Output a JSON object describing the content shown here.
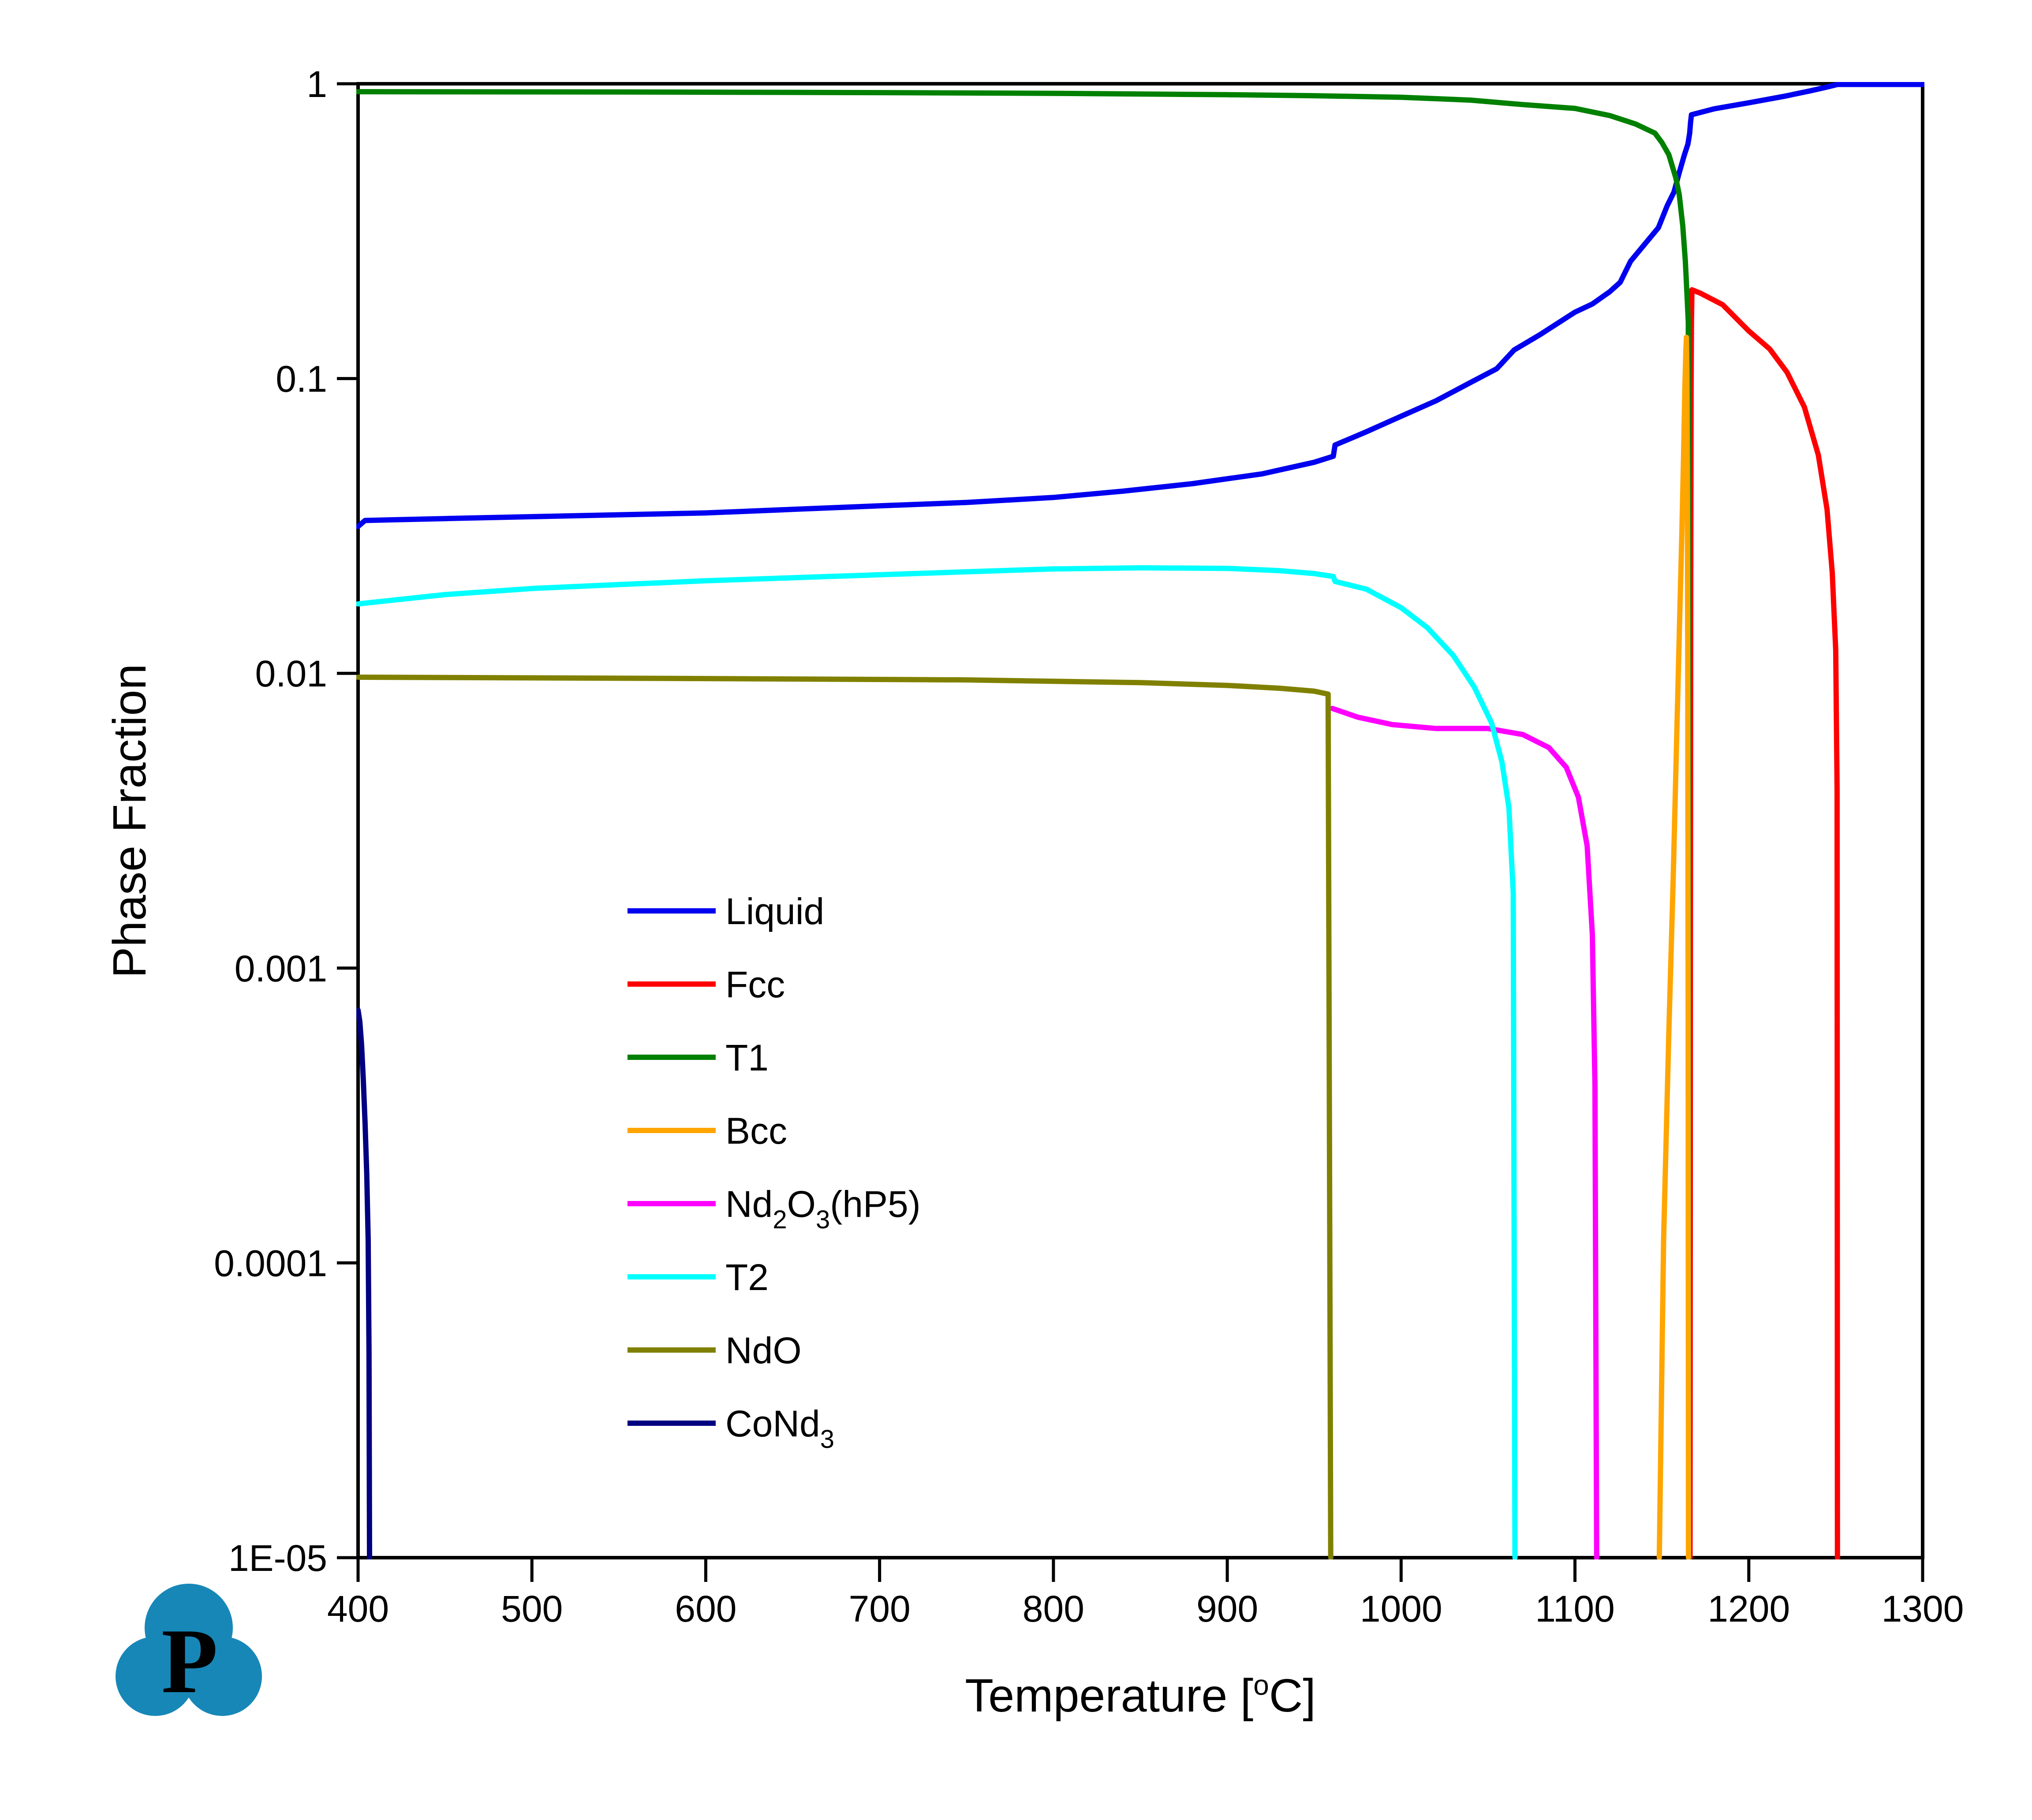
{
  "chart_data": {
    "type": "line",
    "title": "",
    "xlabel_pre": "Temperature [",
    "xlabel_sup": "o",
    "xlabel_post": "C]",
    "ylabel": "Phase Fraction",
    "xlim": [
      400,
      1300
    ],
    "ylim_log": [
      1e-05,
      1
    ],
    "grid": false,
    "legend_position": "inside-left-lower",
    "x_ticks": [
      {
        "label": "400",
        "value": 400
      },
      {
        "label": "500",
        "value": 500
      },
      {
        "label": "600",
        "value": 600
      },
      {
        "label": "700",
        "value": 700
      },
      {
        "label": "800",
        "value": 800
      },
      {
        "label": "900",
        "value": 900
      },
      {
        "label": "1000",
        "value": 1000
      },
      {
        "label": "1100",
        "value": 1100
      },
      {
        "label": "1200",
        "value": 1200
      },
      {
        "label": "1300",
        "value": 1300
      }
    ],
    "y_ticks": [
      {
        "label": "1",
        "value": 1
      },
      {
        "label": "0.1",
        "value": 0.1
      },
      {
        "label": "0.01",
        "value": 0.01
      },
      {
        "label": "0.001",
        "value": 0.001
      },
      {
        "label": "0.0001",
        "value": 0.0001
      },
      {
        "label": "1E-05",
        "value": 1e-05
      }
    ],
    "series": [
      {
        "name": "Liquid",
        "color": "#0000F0",
        "points": [
          [
            400,
            0.0315
          ],
          [
            404,
            0.033
          ],
          [
            450,
            0.0335
          ],
          [
            500,
            0.034
          ],
          [
            550,
            0.0345
          ],
          [
            600,
            0.035
          ],
          [
            650,
            0.036
          ],
          [
            700,
            0.037
          ],
          [
            750,
            0.038
          ],
          [
            800,
            0.0395
          ],
          [
            840,
            0.0415
          ],
          [
            880,
            0.044
          ],
          [
            920,
            0.0475
          ],
          [
            950,
            0.052
          ],
          [
            961,
            0.0545
          ],
          [
            962,
            0.0595
          ],
          [
            980,
            0.066
          ],
          [
            1000,
            0.0745
          ],
          [
            1020,
            0.084
          ],
          [
            1040,
            0.097
          ],
          [
            1055,
            0.108
          ],
          [
            1065,
            0.125
          ],
          [
            1080,
            0.141
          ],
          [
            1100,
            0.168
          ],
          [
            1110,
            0.179
          ],
          [
            1120,
            0.197
          ],
          [
            1126,
            0.212
          ],
          [
            1132,
            0.25
          ],
          [
            1140,
            0.285
          ],
          [
            1148,
            0.325
          ],
          [
            1153,
            0.385
          ],
          [
            1157,
            0.43
          ],
          [
            1160,
            0.5
          ],
          [
            1163,
            0.575
          ],
          [
            1165,
            0.625
          ],
          [
            1166,
            0.68
          ],
          [
            1166.5,
            0.74
          ],
          [
            1167,
            0.785
          ],
          [
            1180,
            0.822
          ],
          [
            1200,
            0.862
          ],
          [
            1220,
            0.906
          ],
          [
            1235,
            0.945
          ],
          [
            1245,
            0.975
          ],
          [
            1251,
            0.995
          ],
          [
            1300,
            0.995
          ]
        ]
      },
      {
        "name": "Fcc",
        "color": "#FF0000",
        "points": [
          [
            1166.2,
            1e-05
          ],
          [
            1166.4,
            0.001
          ],
          [
            1166.6,
            0.02
          ],
          [
            1166.8,
            0.09
          ],
          [
            1167,
            0.155
          ],
          [
            1167.3,
            0.2
          ],
          [
            1172,
            0.195
          ],
          [
            1185,
            0.178
          ],
          [
            1200,
            0.145
          ],
          [
            1212,
            0.126
          ],
          [
            1222,
            0.105
          ],
          [
            1232,
            0.08
          ],
          [
            1240,
            0.055
          ],
          [
            1245,
            0.036
          ],
          [
            1248,
            0.022
          ],
          [
            1250,
            0.012
          ],
          [
            1250.8,
            0.004
          ],
          [
            1251,
            1e-05
          ]
        ]
      },
      {
        "name": "T1",
        "color": "#008000",
        "points": [
          [
            400,
            0.94
          ],
          [
            550,
            0.938
          ],
          [
            700,
            0.933
          ],
          [
            800,
            0.928
          ],
          [
            900,
            0.918
          ],
          [
            950,
            0.911
          ],
          [
            1000,
            0.9
          ],
          [
            1040,
            0.88
          ],
          [
            1070,
            0.85
          ],
          [
            1100,
            0.825
          ],
          [
            1120,
            0.78
          ],
          [
            1135,
            0.73
          ],
          [
            1146,
            0.68
          ],
          [
            1150,
            0.632
          ],
          [
            1154,
            0.575
          ],
          [
            1158,
            0.48
          ],
          [
            1160,
            0.42
          ],
          [
            1162,
            0.33
          ],
          [
            1163.5,
            0.25
          ],
          [
            1164.5,
            0.19
          ],
          [
            1165.2,
            0.155
          ],
          [
            1165.6,
            1e-05
          ]
        ]
      },
      {
        "name": "Bcc",
        "color": "#FFA500",
        "points": [
          [
            1148.5,
            1e-05
          ],
          [
            1151,
            0.00012
          ],
          [
            1154,
            0.0006
          ],
          [
            1156.5,
            0.002
          ],
          [
            1158.5,
            0.006
          ],
          [
            1160,
            0.0135
          ],
          [
            1161.5,
            0.03
          ],
          [
            1162.5,
            0.055
          ],
          [
            1163.2,
            0.092
          ],
          [
            1163.8,
            0.125
          ],
          [
            1164.1,
            0.138
          ],
          [
            1164.4,
            0.105
          ],
          [
            1164.7,
            0.04
          ],
          [
            1164.9,
            0.008
          ],
          [
            1165.1,
            0.0008
          ],
          [
            1165.3,
            1e-05
          ]
        ]
      },
      {
        "name": "Nd2O3(hP5)",
        "color": "#FF00FF",
        "points": [
          [
            960.5,
            0.0076
          ],
          [
            975,
            0.0071
          ],
          [
            995,
            0.0067
          ],
          [
            1020,
            0.0065
          ],
          [
            1050,
            0.0065
          ],
          [
            1070,
            0.0062
          ],
          [
            1085,
            0.0056
          ],
          [
            1095,
            0.0048
          ],
          [
            1102,
            0.0038
          ],
          [
            1107,
            0.0026
          ],
          [
            1110,
            0.0013
          ],
          [
            1111.5,
            0.0004
          ],
          [
            1112.5,
            1e-05
          ]
        ]
      },
      {
        "name": "T2",
        "color": "#00FFFF",
        "points": [
          [
            400,
            0.0172
          ],
          [
            450,
            0.0185
          ],
          [
            500,
            0.0194
          ],
          [
            550,
            0.02
          ],
          [
            600,
            0.0206
          ],
          [
            650,
            0.0211
          ],
          [
            700,
            0.0216
          ],
          [
            750,
            0.0221
          ],
          [
            800,
            0.0226
          ],
          [
            850,
            0.0228
          ],
          [
            900,
            0.0227
          ],
          [
            930,
            0.0223
          ],
          [
            950,
            0.0218
          ],
          [
            961,
            0.0213
          ],
          [
            962,
            0.0205
          ],
          [
            980,
            0.0193
          ],
          [
            1000,
            0.0167
          ],
          [
            1015,
            0.0143
          ],
          [
            1030,
            0.0115
          ],
          [
            1042,
            0.009
          ],
          [
            1052,
            0.0068
          ],
          [
            1058,
            0.005
          ],
          [
            1062,
            0.0035
          ],
          [
            1064.5,
            0.0018
          ],
          [
            1065.5,
            1e-05
          ]
        ]
      },
      {
        "name": "NdO",
        "color": "#808000",
        "points": [
          [
            400,
            0.0097
          ],
          [
            600,
            0.0096
          ],
          [
            750,
            0.0095
          ],
          [
            850,
            0.0093
          ],
          [
            900,
            0.0091
          ],
          [
            930,
            0.0089
          ],
          [
            950,
            0.0087
          ],
          [
            958,
            0.0085
          ],
          [
            959.5,
            1e-05
          ]
        ]
      },
      {
        "name": "CoNd3",
        "color": "#000080",
        "points": [
          [
            400,
            0.00072
          ],
          [
            401,
            0.00066
          ],
          [
            402,
            0.00055
          ],
          [
            403,
            0.00042
          ],
          [
            404,
            0.0003
          ],
          [
            405,
            0.0002
          ],
          [
            405.8,
            0.00012
          ],
          [
            406.3,
            5e-05
          ],
          [
            406.6,
            1e-05
          ]
        ]
      }
    ]
  },
  "legend": {
    "items": [
      {
        "color": "#0000F0",
        "parts": [
          [
            "Liquid",
            false
          ]
        ]
      },
      {
        "color": "#FF0000",
        "parts": [
          [
            "Fcc",
            false
          ]
        ]
      },
      {
        "color": "#008000",
        "parts": [
          [
            "T1",
            false
          ]
        ]
      },
      {
        "color": "#FFA500",
        "parts": [
          [
            "Bcc",
            false
          ]
        ]
      },
      {
        "color": "#FF00FF",
        "parts": [
          [
            "Nd",
            false
          ],
          [
            "2",
            true
          ],
          [
            "O",
            false
          ],
          [
            "3",
            true
          ],
          [
            "(hP5)",
            false
          ]
        ]
      },
      {
        "color": "#00FFFF",
        "parts": [
          [
            "T2",
            false
          ]
        ]
      },
      {
        "color": "#808000",
        "parts": [
          [
            "NdO",
            false
          ]
        ]
      },
      {
        "color": "#000080",
        "parts": [
          [
            "CoNd",
            false
          ],
          [
            "3",
            true
          ]
        ]
      }
    ]
  },
  "logo": {
    "letter": "P",
    "color": "#1787B8"
  }
}
